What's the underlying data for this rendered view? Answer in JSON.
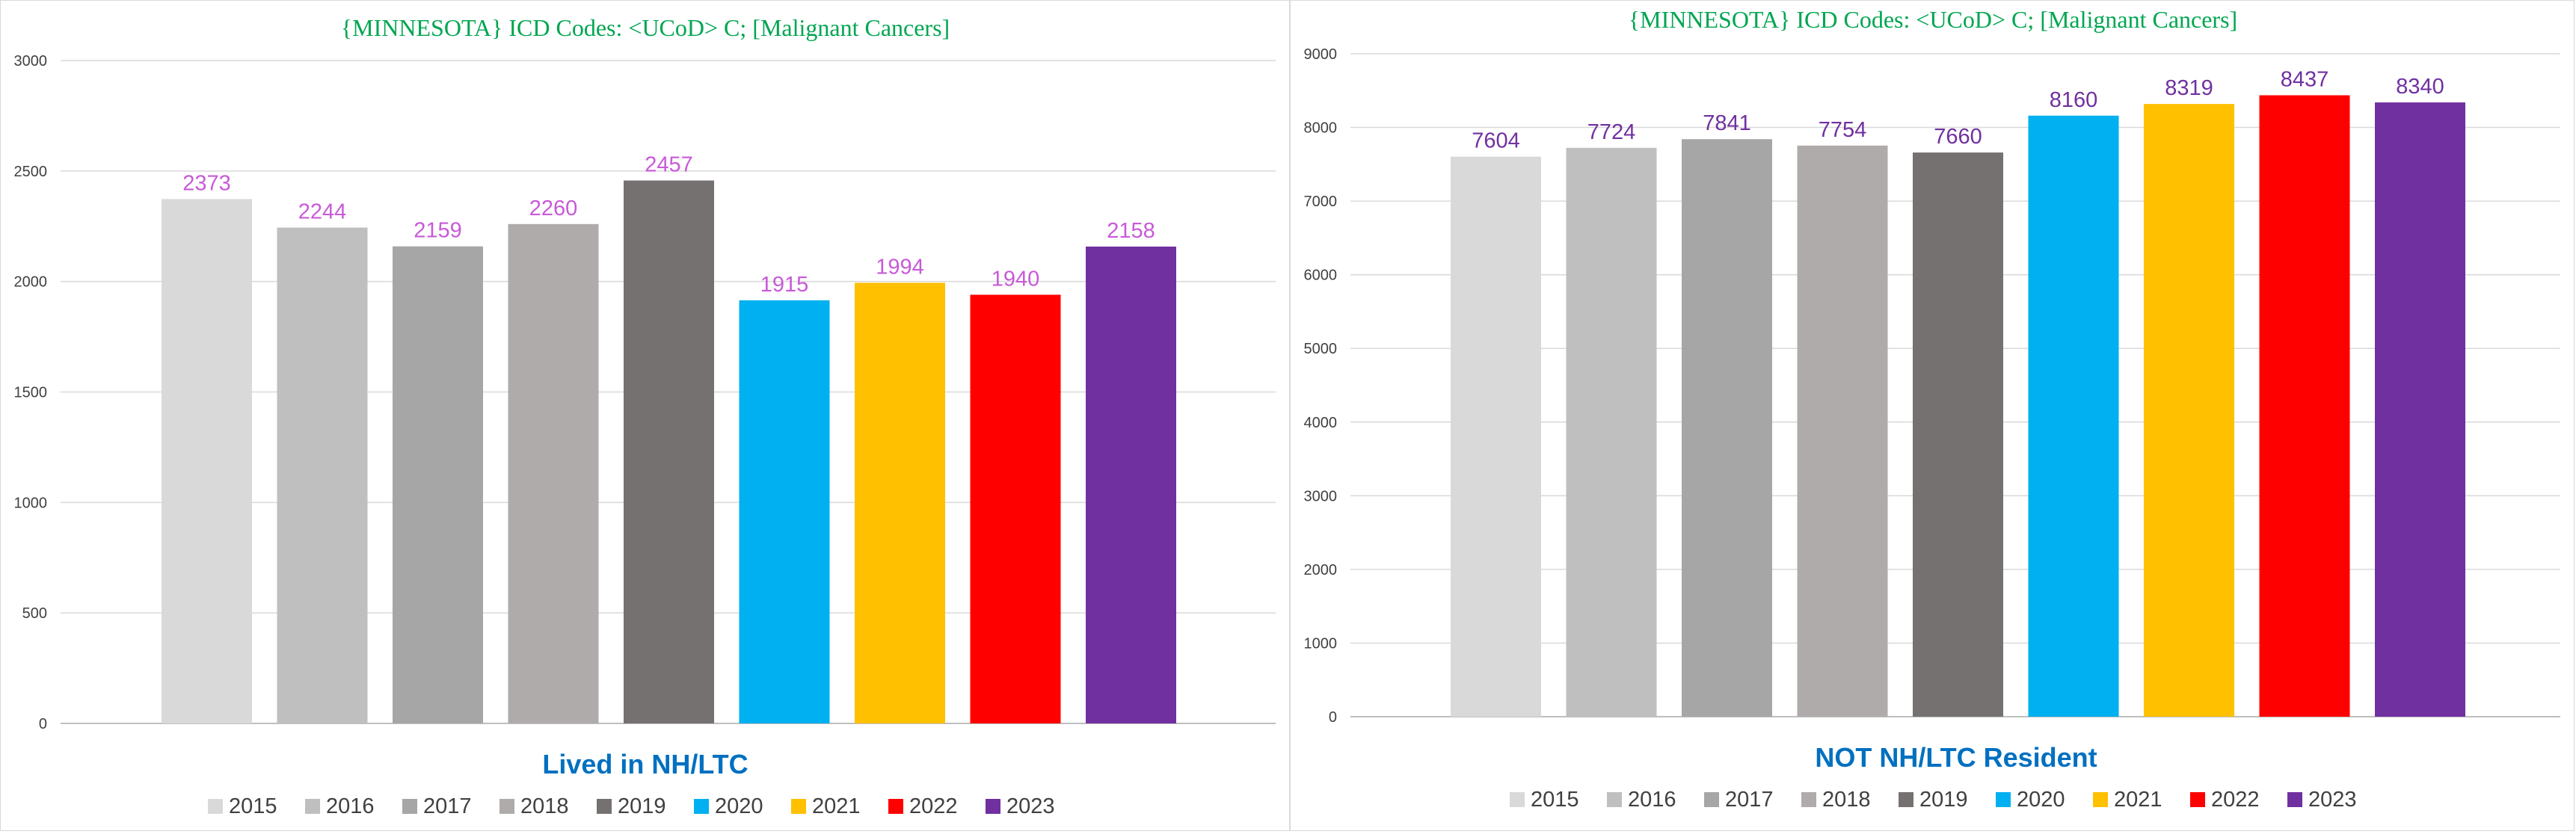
{
  "chart_data": [
    {
      "type": "bar",
      "title": "{MINNESOTA}  ICD Codes: <UCoD> C;  [Malignant Cancers]",
      "xlabel": "Lived in NH/LTC",
      "ylabel": "",
      "ylim": [
        0,
        3000
      ],
      "yticks": [
        0,
        500,
        1000,
        1500,
        2000,
        2500,
        3000
      ],
      "categories": [
        "2015",
        "2016",
        "2017",
        "2018",
        "2019",
        "2020",
        "2021",
        "2022",
        "2023"
      ],
      "values": [
        2373,
        2244,
        2159,
        2260,
        2457,
        1915,
        1994,
        1940,
        2158
      ],
      "colors": [
        "#d9d9d9",
        "#bfbfbf",
        "#a6a6a6",
        "#afabab",
        "#767171",
        "#00b0f0",
        "#ffc000",
        "#ff0000",
        "#7030a0"
      ],
      "label_color": "#c85ad8",
      "legend_position": "bottom",
      "grid": true
    },
    {
      "type": "bar",
      "title": "{MINNESOTA}  ICD Codes: <UCoD> C;  [Malignant Cancers]",
      "xlabel": "NOT NH/LTC Resident",
      "ylabel": "",
      "ylim": [
        0,
        9000
      ],
      "yticks": [
        0,
        1000,
        2000,
        3000,
        4000,
        5000,
        6000,
        7000,
        8000,
        9000
      ],
      "categories": [
        "2015",
        "2016",
        "2017",
        "2018",
        "2019",
        "2020",
        "2021",
        "2022",
        "2023"
      ],
      "values": [
        7604,
        7724,
        7841,
        7754,
        7660,
        8160,
        8319,
        8437,
        8340
      ],
      "colors": [
        "#d9d9d9",
        "#bfbfbf",
        "#a6a6a6",
        "#afabab",
        "#767171",
        "#00b0f0",
        "#ffc000",
        "#ff0000",
        "#7030a0"
      ],
      "label_color": "#7030a0",
      "legend_position": "bottom",
      "grid": true
    }
  ]
}
